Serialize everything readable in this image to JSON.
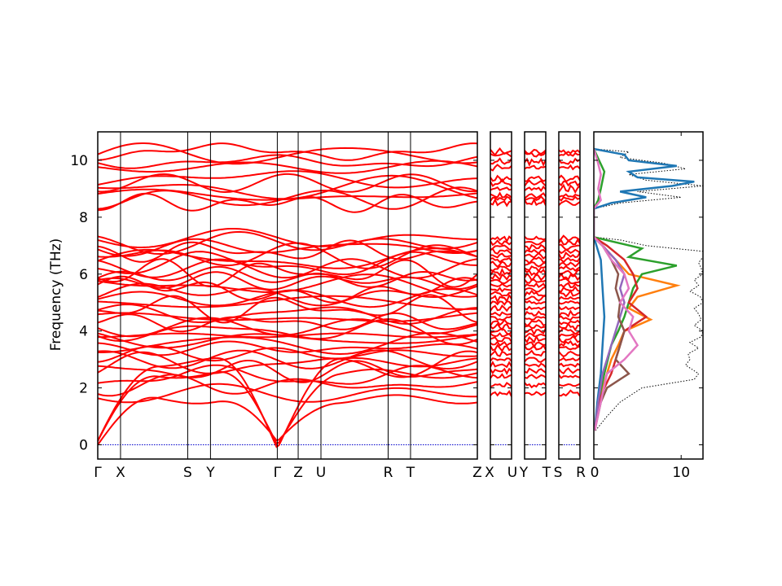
{
  "chart_data": [
    {
      "type": "line",
      "title": "",
      "ylabel": "Frequency (THz)",
      "ylim": [
        -0.5,
        11.0
      ],
      "yticks": [
        0,
        2,
        4,
        6,
        8,
        10
      ],
      "zero_line_color": "#0000cc",
      "band_color": "#ff0000",
      "segments": [
        {
          "kpoints": [
            {
              "label": "Γ",
              "x": 0.0
            },
            {
              "label": "X",
              "x": 0.06
            },
            {
              "label": "S",
              "x": 0.237
            },
            {
              "label": "Y",
              "x": 0.297
            },
            {
              "label": "Γ",
              "x": 0.473
            },
            {
              "label": "Z",
              "x": 0.528
            },
            {
              "label": "U",
              "x": 0.588
            },
            {
              "label": "R",
              "x": 0.765
            },
            {
              "label": "T",
              "x": 0.824
            },
            {
              "label": "Z",
              "x": 1.0
            }
          ]
        },
        {
          "kpoints": [
            {
              "label": "X",
              "x": 0.0
            },
            {
              "label": "U",
              "x": 1.0
            }
          ]
        },
        {
          "kpoints": [
            {
              "label": "Y",
              "x": 0.0
            },
            {
              "label": "T",
              "x": 1.0
            }
          ]
        },
        {
          "kpoints": [
            {
              "label": "S",
              "x": 0.0
            },
            {
              "label": "R",
              "x": 1.0
            }
          ]
        }
      ],
      "bands": {
        "acoustic_gamma_points": [
          0.0,
          0.473
        ],
        "acoustic_peak_freqs": [
          1.6,
          2.5,
          2.9
        ],
        "low_optical_bases": [
          1.8,
          2.1,
          2.4,
          2.6,
          2.8,
          3.0,
          3.2,
          3.4,
          3.55,
          3.7,
          3.85,
          4.0,
          4.15,
          4.3,
          4.45,
          4.6,
          4.8,
          5.0,
          5.15,
          5.3,
          5.45,
          5.6,
          5.75,
          5.9,
          6.05,
          6.2,
          6.35,
          6.5,
          6.65,
          6.8,
          6.95,
          7.1,
          7.25
        ],
        "high_optical_bases": [
          8.5,
          8.65,
          8.75,
          9.0,
          9.2,
          9.35,
          9.75,
          9.95,
          10.2,
          10.3
        ]
      }
    },
    {
      "type": "line",
      "title": "",
      "xlim": [
        0,
        12.5
      ],
      "xticks": [
        0,
        10
      ],
      "ylim": [
        -0.5,
        11.0
      ],
      "series": [
        {
          "color": "#000000",
          "style": "dotted",
          "freqs": [
            0.5,
            1.0,
            1.5,
            2.0,
            2.3,
            2.5,
            2.8,
            3.0,
            3.2,
            3.4,
            3.6,
            3.8,
            4.0,
            4.2,
            4.4,
            4.6,
            4.8,
            5.0,
            5.2,
            5.4,
            5.6,
            5.8,
            6.0,
            6.2,
            6.4,
            6.6,
            6.8,
            7.0,
            7.2,
            7.3,
            8.3,
            8.5,
            8.7,
            8.9,
            9.1,
            9.3,
            9.5,
            9.7,
            9.9,
            10.1,
            10.3,
            10.4
          ],
          "dos": [
            0.2,
            1.5,
            3.0,
            5.5,
            11.5,
            12.0,
            10.5,
            11.0,
            10.8,
            12.0,
            11.0,
            12.3,
            12.5,
            11.5,
            12.3,
            12.0,
            11.5,
            12.5,
            12.2,
            11.0,
            12.0,
            11.5,
            12.5,
            12.3,
            12.0,
            12.5,
            12.5,
            6.0,
            3.0,
            0.0,
            0.0,
            3.0,
            10.0,
            5.0,
            12.5,
            6.0,
            4.0,
            10.5,
            8.0,
            3.0,
            4.0,
            0.0
          ]
        },
        {
          "color": "#1f77b4",
          "freqs": [
            0.5,
            1.5,
            2.5,
            3.5,
            4.5,
            5.5,
            6.5,
            7.3,
            8.3,
            8.5,
            8.7,
            8.9,
            9.1,
            9.25,
            9.4,
            9.6,
            9.8,
            10.0,
            10.2,
            10.4
          ],
          "dos": [
            0.1,
            0.4,
            0.8,
            1.0,
            1.2,
            1.0,
            0.8,
            0.0,
            0.0,
            2.0,
            6.0,
            3.0,
            9.0,
            11.5,
            5.0,
            4.0,
            9.5,
            4.0,
            3.5,
            0.0
          ]
        },
        {
          "color": "#ff7f0e",
          "freqs": [
            0.5,
            1.5,
            2.5,
            3.0,
            3.5,
            4.0,
            4.4,
            4.8,
            5.2,
            5.6,
            6.0,
            6.5,
            7.0,
            7.3
          ],
          "dos": [
            0.1,
            0.6,
            1.5,
            2.0,
            2.8,
            3.5,
            6.5,
            4.0,
            5.0,
            9.5,
            4.0,
            2.5,
            1.0,
            0.0
          ]
        },
        {
          "color": "#2ca02c",
          "freqs": [
            0.5,
            1.5,
            2.5,
            3.0,
            3.5,
            4.0,
            4.5,
            5.0,
            5.5,
            6.0,
            6.3,
            6.6,
            6.9,
            7.3,
            8.3,
            8.6,
            9.0,
            9.6,
            10.0,
            10.4
          ],
          "dos": [
            0.1,
            0.5,
            1.2,
            1.6,
            2.0,
            2.8,
            3.5,
            4.0,
            4.5,
            5.5,
            9.5,
            4.0,
            5.5,
            0.0,
            0.0,
            0.5,
            0.8,
            1.2,
            0.6,
            0.0
          ]
        },
        {
          "color": "#d62728",
          "freqs": [
            0.5,
            1.5,
            2.0,
            2.5,
            3.0,
            3.5,
            4.0,
            4.5,
            5.0,
            5.5,
            6.0,
            6.5,
            7.0,
            7.3
          ],
          "dos": [
            0.1,
            0.6,
            1.2,
            2.0,
            2.5,
            3.0,
            3.5,
            6.0,
            4.0,
            5.0,
            4.5,
            3.5,
            1.5,
            0.0
          ]
        },
        {
          "color": "#9467bd",
          "freqs": [
            0.5,
            1.5,
            2.5,
            3.0,
            3.5,
            4.0,
            4.5,
            5.0,
            5.5,
            6.0,
            6.5,
            7.0,
            7.3
          ],
          "dos": [
            0.1,
            0.5,
            1.0,
            1.5,
            2.0,
            2.5,
            3.0,
            3.5,
            3.0,
            3.5,
            2.5,
            1.0,
            0.0
          ]
        },
        {
          "color": "#8c564b",
          "freqs": [
            0.5,
            1.5,
            2.0,
            2.5,
            3.0,
            3.5,
            4.0,
            4.5,
            5.0,
            5.5,
            6.0,
            6.5,
            7.0,
            7.3
          ],
          "dos": [
            0.1,
            0.8,
            1.5,
            4.0,
            2.5,
            3.0,
            3.5,
            2.8,
            3.0,
            2.5,
            2.8,
            2.0,
            1.0,
            0.0
          ]
        },
        {
          "color": "#e377c2",
          "freqs": [
            0.5,
            1.5,
            2.5,
            3.0,
            3.5,
            4.0,
            4.5,
            5.0,
            5.5,
            6.0,
            6.5,
            7.0,
            7.3,
            8.3,
            8.6,
            9.0,
            9.5,
            10.0,
            10.4
          ],
          "dos": [
            0.1,
            0.8,
            1.5,
            3.5,
            5.0,
            4.0,
            4.5,
            3.0,
            4.0,
            3.5,
            2.0,
            1.0,
            0.0,
            0.0,
            0.8,
            0.5,
            0.8,
            0.4,
            0.0
          ]
        }
      ]
    }
  ]
}
